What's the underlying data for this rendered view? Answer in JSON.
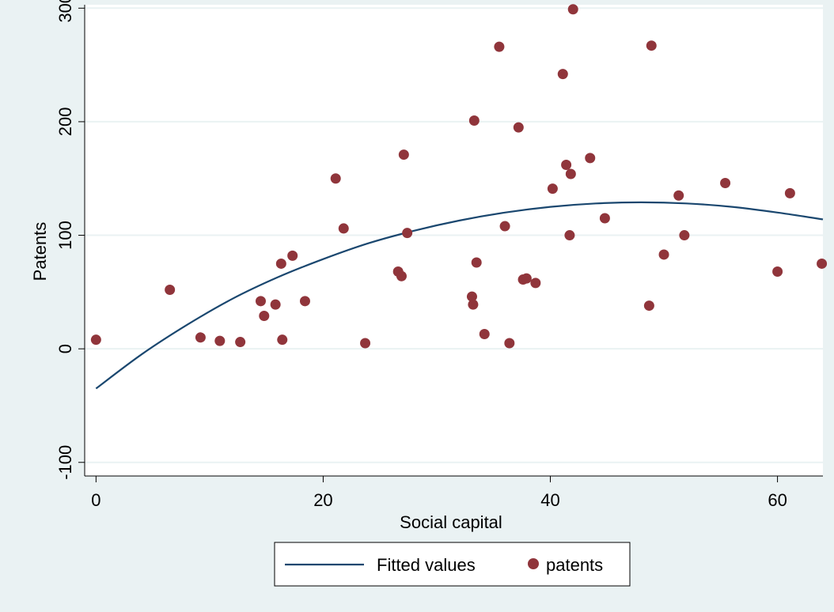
{
  "chart_data": {
    "type": "scatter",
    "xlabel": "Social capital",
    "ylabel": "Patents",
    "xlim": [
      -1,
      64
    ],
    "ylim": [
      -112,
      303
    ],
    "x_ticks": [
      0,
      20,
      40,
      60
    ],
    "y_ticks": [
      -100,
      0,
      100,
      200,
      300
    ],
    "x_tick_labels": [
      "0",
      "20",
      "40",
      "60"
    ],
    "y_tick_labels": [
      "-100",
      "0",
      "100",
      "200",
      "300"
    ],
    "grid": "horizontal",
    "legend_position": "bottom",
    "series": [
      {
        "name": "Fitted values",
        "kind": "line",
        "color": "#1a476f",
        "x": [
          0,
          4,
          8,
          12,
          16,
          20,
          24,
          28,
          32,
          36,
          40,
          44,
          48,
          52,
          56,
          60,
          64
        ],
        "y": [
          -35,
          -5,
          21,
          44,
          63,
          79,
          93,
          104,
          113,
          120,
          125,
          128,
          129,
          128,
          125,
          120,
          114
        ]
      },
      {
        "name": "patents",
        "kind": "scatter",
        "color": "#90353b",
        "points": [
          [
            0,
            8
          ],
          [
            6.5,
            52
          ],
          [
            9.2,
            10
          ],
          [
            10.9,
            7
          ],
          [
            12.7,
            6
          ],
          [
            14.5,
            42
          ],
          [
            14.8,
            29
          ],
          [
            15.8,
            39
          ],
          [
            16.3,
            75
          ],
          [
            16.4,
            8
          ],
          [
            17.3,
            82
          ],
          [
            18.4,
            42
          ],
          [
            21.1,
            150
          ],
          [
            21.8,
            106
          ],
          [
            23.7,
            5
          ],
          [
            26.6,
            68
          ],
          [
            26.9,
            64
          ],
          [
            27.1,
            171
          ],
          [
            27.4,
            102
          ],
          [
            33.1,
            46
          ],
          [
            33.2,
            39
          ],
          [
            33.3,
            201
          ],
          [
            33.5,
            76
          ],
          [
            34.2,
            13
          ],
          [
            35.5,
            266
          ],
          [
            36.0,
            108
          ],
          [
            36.4,
            5
          ],
          [
            37.2,
            195
          ],
          [
            37.6,
            61
          ],
          [
            37.9,
            62
          ],
          [
            38.7,
            58
          ],
          [
            40.2,
            141
          ],
          [
            41.1,
            242
          ],
          [
            41.4,
            162
          ],
          [
            41.7,
            100
          ],
          [
            41.8,
            154
          ],
          [
            42.0,
            299
          ],
          [
            43.5,
            168
          ],
          [
            44.8,
            115
          ],
          [
            48.7,
            38
          ],
          [
            48.9,
            267
          ],
          [
            50.0,
            83
          ],
          [
            51.3,
            135
          ],
          [
            51.8,
            100
          ],
          [
            55.4,
            146
          ],
          [
            60.0,
            68
          ],
          [
            61.1,
            137
          ],
          [
            63.9,
            75
          ]
        ]
      }
    ]
  },
  "colors": {
    "outer_background": "#eaf2f3",
    "plot_background": "#ffffff",
    "grid": "#eaf2f3",
    "fitted_line": "#1a476f",
    "marker": "#90353b"
  }
}
